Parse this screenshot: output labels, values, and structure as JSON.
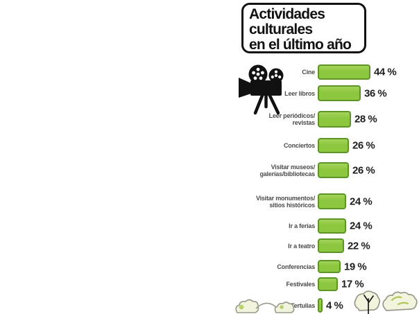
{
  "title": {
    "lines": [
      "Actividades",
      "culturales",
      "en el último año"
    ],
    "full": "Actividades culturales en el último año"
  },
  "chart_data": {
    "type": "bar",
    "orientation": "horizontal",
    "title": "Actividades culturales en el último año",
    "unit": "%",
    "categories": [
      "Cine",
      "Leer libros",
      "Leer periódicos/revistas",
      "Conciertos",
      "Visitar museos/galerías/bibliotecas",
      "Visitar monumentos/sitios históricos",
      "Ir a ferias",
      "Ir a teatro",
      "Conferencias",
      "Festivales",
      "Tertulias"
    ],
    "values": [
      44,
      36,
      28,
      26,
      26,
      24,
      24,
      22,
      19,
      17,
      4
    ],
    "xlim": [
      0,
      44
    ],
    "grid": false,
    "legend": "none",
    "value_labels_shown": true
  },
  "rows": [
    {
      "label_lines": [
        "Cine"
      ],
      "value": 44,
      "value_label": "44 %"
    },
    {
      "label_lines": [
        "Leer libros"
      ],
      "value": 36,
      "value_label": "36 %"
    },
    {
      "label_lines": [
        "Leer periódicos/",
        "revistas"
      ],
      "value": 28,
      "value_label": "28 %"
    },
    {
      "label_lines": [
        "Conciertos"
      ],
      "value": 26,
      "value_label": "26 %"
    },
    {
      "label_lines": [
        "Visitar museos/",
        "galerías/bibliotecas"
      ],
      "value": 26,
      "value_label": "26 %"
    },
    {
      "label_lines": [
        "Visitar monumentos/",
        "sitios históricos"
      ],
      "value": 24,
      "value_label": "24 %"
    },
    {
      "label_lines": [
        "Ir a ferias"
      ],
      "value": 24,
      "value_label": "24 %"
    },
    {
      "label_lines": [
        "Ir a teatro"
      ],
      "value": 22,
      "value_label": "22 %"
    },
    {
      "label_lines": [
        "Conferencias"
      ],
      "value": 19,
      "value_label": "19 %"
    },
    {
      "label_lines": [
        "Festivales"
      ],
      "value": 17,
      "value_label": "17 %"
    },
    {
      "label_lines": [
        "Tertulias"
      ],
      "value": 4,
      "value_label": "4 %"
    }
  ],
  "icons": {
    "camera": "film-camera-icon",
    "trees_left": "sketch-trees-icon",
    "trees_right": "sketch-trees-icon"
  },
  "colors": {
    "bar_fill": "#8dc63f",
    "bar_fill_light": "#a3d45a",
    "bar_border": "#5c9427",
    "title_color": "#111111",
    "value_color": "#1e1e1e",
    "label_color": "#4b4b4b",
    "icon_color": "#111111",
    "tree_fill": "#f2f4dd",
    "tree_stroke": "#98998a",
    "tree_accent": "#aec95a",
    "background": "#ffffff"
  }
}
